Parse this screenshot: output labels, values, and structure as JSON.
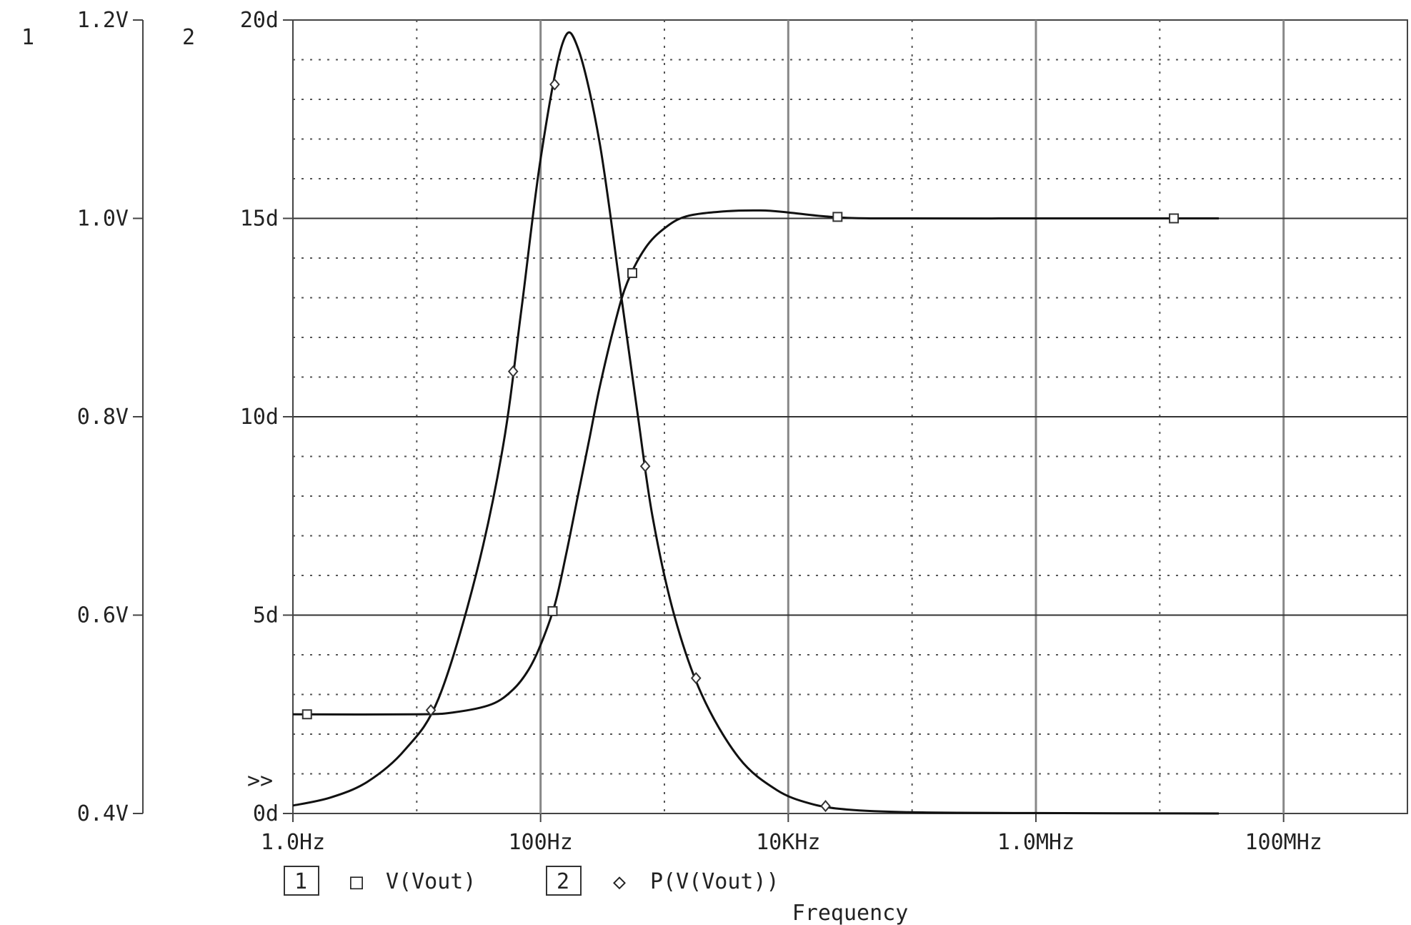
{
  "chart_data": {
    "type": "line",
    "xlabel": "Frequency",
    "xscale": "log",
    "xlim": [
      1,
      1000000000
    ],
    "x_ticks": [
      {
        "value": 1,
        "label": "1.0Hz"
      },
      {
        "value": 100,
        "label": "100Hz"
      },
      {
        "value": 10000,
        "label": "10KHz"
      },
      {
        "value": 1000000,
        "label": "1.0MHz"
      },
      {
        "value": 100000000,
        "label": "100MHz"
      }
    ],
    "axes": [
      {
        "id": "1",
        "ylim": [
          0.4,
          1.2
        ],
        "ticks": [
          {
            "value": 0.4,
            "label": "0.4V"
          },
          {
            "value": 0.6,
            "label": "0.6V"
          },
          {
            "value": 0.8,
            "label": "0.8V"
          },
          {
            "value": 1.0,
            "label": "1.0V"
          },
          {
            "value": 1.2,
            "label": "1.2V"
          }
        ]
      },
      {
        "id": "2",
        "ylim": [
          0,
          20
        ],
        "ticks": [
          {
            "value": 0,
            "label": "0d"
          },
          {
            "value": 5,
            "label": "5d"
          },
          {
            "value": 10,
            "label": "10d"
          },
          {
            "value": 15,
            "label": "15d"
          },
          {
            "value": 20,
            "label": "20d"
          }
        ]
      }
    ],
    "overflow_marker": ">>",
    "series": [
      {
        "name": "V(Vout)",
        "axis": "1",
        "marker": "square",
        "points": [
          [
            1,
            0.5
          ],
          [
            10,
            0.5
          ],
          [
            20,
            0.502
          ],
          [
            40,
            0.51
          ],
          [
            60,
            0.525
          ],
          [
            80,
            0.545
          ],
          [
            100,
            0.57
          ],
          [
            130,
            0.61
          ],
          [
            160,
            0.66
          ],
          [
            200,
            0.72
          ],
          [
            250,
            0.78
          ],
          [
            300,
            0.83
          ],
          [
            400,
            0.895
          ],
          [
            500,
            0.935
          ],
          [
            700,
            0.97
          ],
          [
            1000,
            0.99
          ],
          [
            1500,
            1.002
          ],
          [
            3000,
            1.007
          ],
          [
            6000,
            1.008
          ],
          [
            10000,
            1.006
          ],
          [
            20000,
            1.002
          ],
          [
            50000,
            1.0
          ],
          [
            1000000,
            1.0
          ],
          [
            30000000,
            1.0
          ]
        ],
        "marker_x": [
          1.3,
          125,
          550,
          25000,
          13000000
        ]
      },
      {
        "name": "P(V(Vout))",
        "axis": "2",
        "marker": "diamond",
        "points": [
          [
            1,
            0.2
          ],
          [
            2,
            0.4
          ],
          [
            4,
            0.8
          ],
          [
            8,
            1.6
          ],
          [
            15,
            2.9
          ],
          [
            30,
            6.0
          ],
          [
            50,
            9.3
          ],
          [
            70,
            12.7
          ],
          [
            100,
            16.5
          ],
          [
            150,
            19.4
          ],
          [
            200,
            19.3
          ],
          [
            300,
            16.9
          ],
          [
            450,
            13.0
          ],
          [
            600,
            10.2
          ],
          [
            800,
            7.5
          ],
          [
            1200,
            5.0
          ],
          [
            2000,
            3.0
          ],
          [
            4000,
            1.4
          ],
          [
            8000,
            0.6
          ],
          [
            15000,
            0.25
          ],
          [
            30000,
            0.1
          ],
          [
            100000,
            0.03
          ],
          [
            1000000,
            0.01
          ],
          [
            30000000,
            0.0
          ]
        ],
        "marker_x": [
          13,
          60,
          130,
          700,
          1800,
          20000
        ]
      }
    ],
    "legend": [
      {
        "index": "1",
        "symbol": "□",
        "label": "V(Vout)"
      },
      {
        "index": "2",
        "symbol": "◇",
        "label": "P(V(Vout))"
      }
    ]
  }
}
